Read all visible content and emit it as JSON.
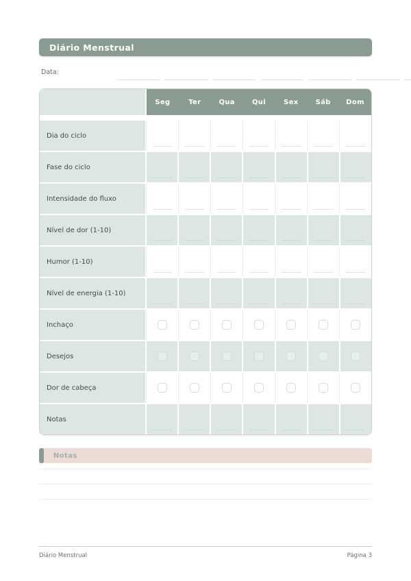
{
  "document": {
    "title": "Diário Menstrual"
  },
  "header": {
    "date_label": "Data:",
    "date_blank_count": 7
  },
  "tracker_table": {
    "day_headers": [
      "Seg",
      "Ter",
      "Qua",
      "Qui",
      "Sex",
      "Sáb",
      "Dom"
    ],
    "day_keys": [
      "seg",
      "ter",
      "qua",
      "qui",
      "sex",
      "sab",
      "dom"
    ],
    "rows": [
      {
        "label": "Dia do ciclo",
        "cell_type": "write-line"
      },
      {
        "label": "Fase do ciclo",
        "cell_type": "write-line"
      },
      {
        "label": "Intensidade do fluxo",
        "cell_type": "write-line"
      },
      {
        "label": "Nível de dor (1-10)",
        "cell_type": "write-line"
      },
      {
        "label": "Humor (1-10)",
        "cell_type": "write-line"
      },
      {
        "label": "Nível de energia (1-10)",
        "cell_type": "write-line"
      },
      {
        "label": "Inchaço",
        "cell_type": "checkbox"
      },
      {
        "label": "Desejos",
        "cell_type": "checkbox"
      },
      {
        "label": "Dor de cabeça",
        "cell_type": "checkbox"
      },
      {
        "label": "Notas",
        "cell_type": "write-line"
      }
    ]
  },
  "notes_section": {
    "title": "Notas",
    "write_line_count": 3
  },
  "footer": {
    "left_text": "Diário Menstrual",
    "right_text": "Página 3"
  },
  "colors": {
    "accent_sage": "#8a9b91",
    "row_tint": "#dce7e1",
    "notes_bar_pink": "#eadbd5",
    "footer_text": "#68746d"
  }
}
